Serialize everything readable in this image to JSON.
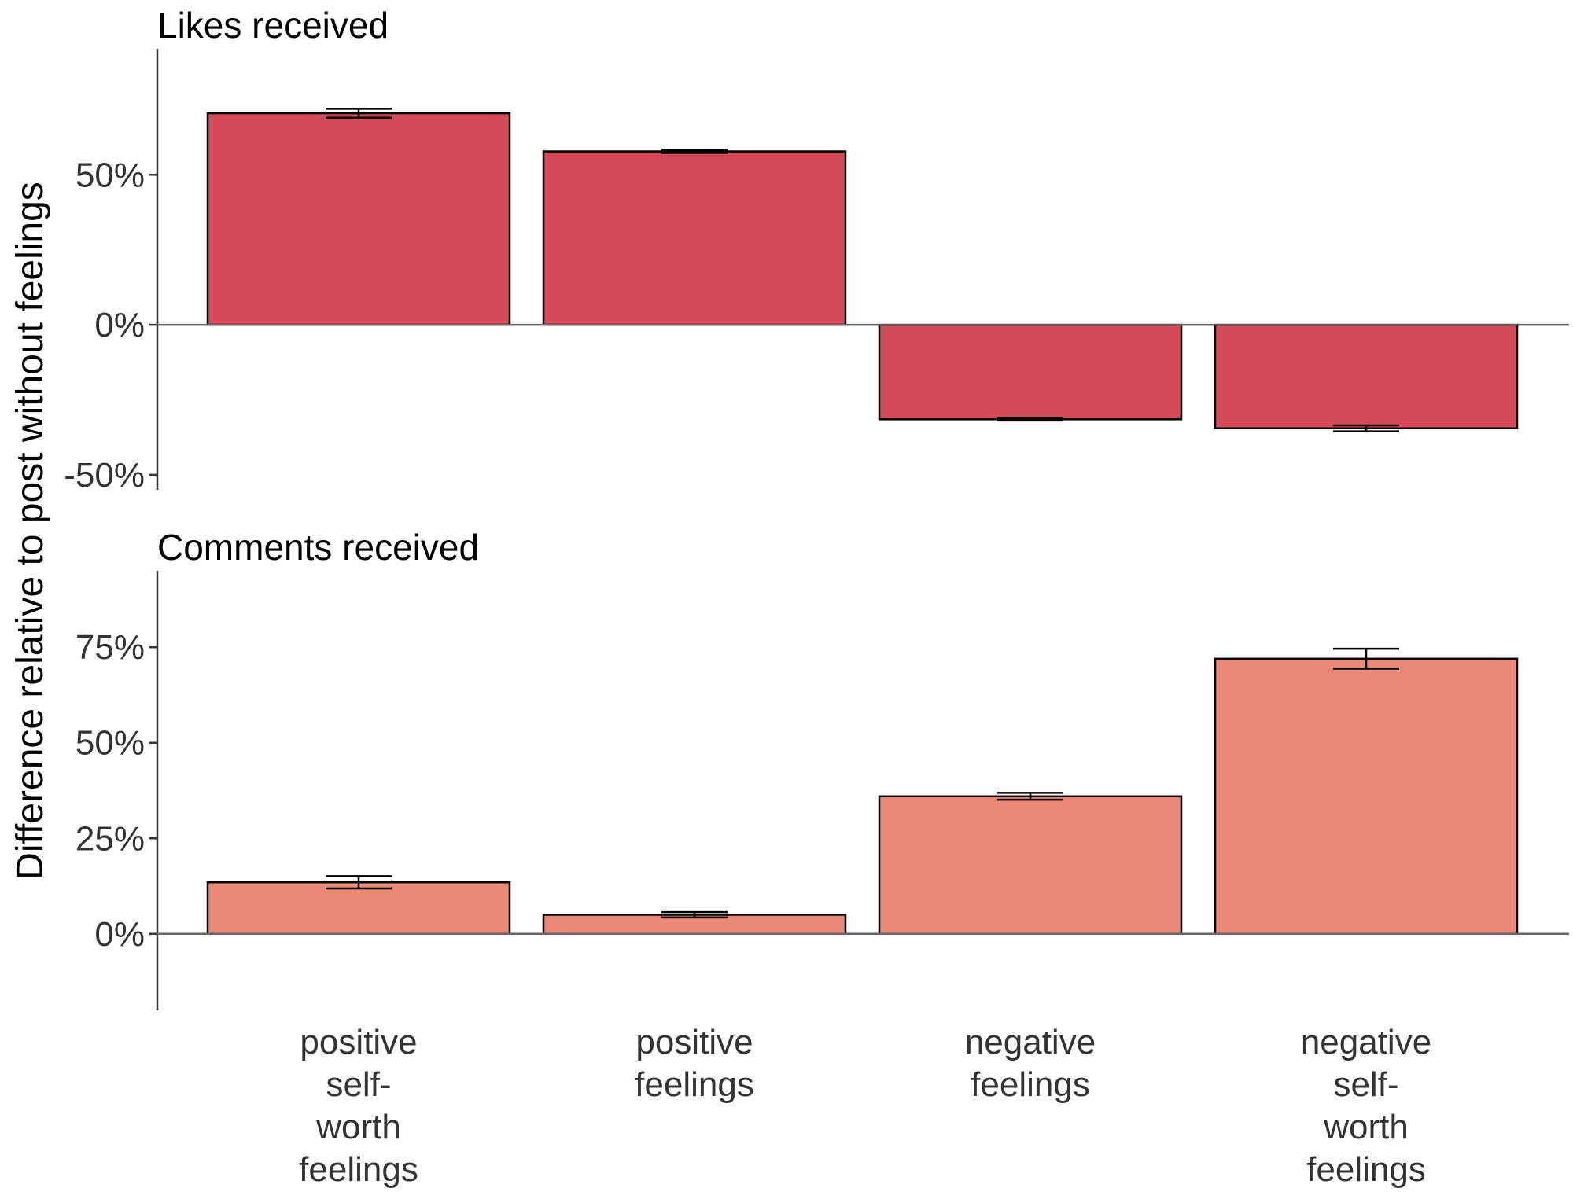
{
  "chart_data": {
    "type": "bar",
    "ylabel": "Difference relative to post without feelings",
    "categories": [
      [
        "positive",
        "self-",
        "worth",
        "feelings"
      ],
      [
        "positive",
        "feelings"
      ],
      [
        "negative",
        "feelings"
      ],
      [
        "negative",
        "self-",
        "worth",
        "feelings"
      ]
    ],
    "panels": [
      {
        "title": "Likes received",
        "color": "#d44a58",
        "ylim": [
          -55,
          92
        ],
        "ticks": [
          -50,
          0,
          50
        ],
        "tick_labels": [
          "-50%",
          "0%",
          "50%"
        ],
        "values": [
          70.5,
          57.8,
          -31.5,
          -34.5
        ],
        "error_low": [
          69.0,
          57.3,
          -31.9,
          -35.5
        ],
        "error_high": [
          72.0,
          58.3,
          -31.1,
          -33.5
        ]
      },
      {
        "title": "Comments received",
        "color": "#ea8777",
        "ylim": [
          -20,
          95
        ],
        "ticks": [
          0,
          25,
          50,
          75
        ],
        "tick_labels": [
          "0%",
          "25%",
          "50%",
          "75%"
        ],
        "values": [
          13.5,
          5.0,
          36.0,
          72.0
        ],
        "error_low": [
          11.9,
          4.3,
          35.1,
          69.4
        ],
        "error_high": [
          15.1,
          5.7,
          36.9,
          74.6
        ]
      }
    ],
    "zero_line_color": "#666666",
    "axis_color": "#333333"
  }
}
